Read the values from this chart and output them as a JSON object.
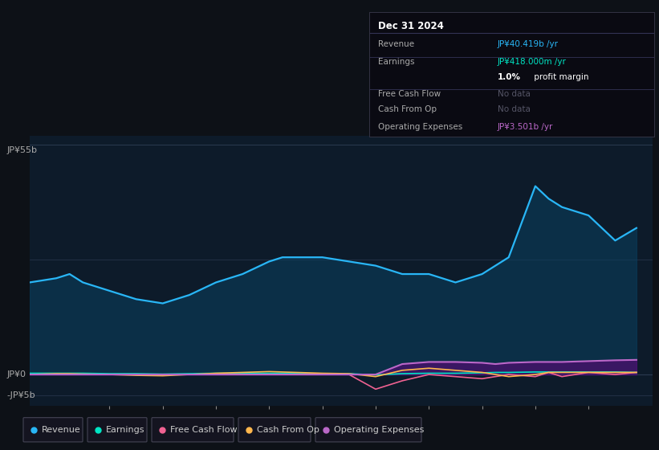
{
  "background_color": "#0d1117",
  "chart_bg_color": "#0d1b2a",
  "x_years": [
    2013.5,
    2014.0,
    2014.25,
    2014.5,
    2015.0,
    2015.5,
    2016.0,
    2016.5,
    2017.0,
    2017.5,
    2018.0,
    2018.25,
    2018.5,
    2019.0,
    2019.5,
    2020.0,
    2020.5,
    2021.0,
    2021.5,
    2022.0,
    2022.25,
    2022.5,
    2023.0,
    2023.25,
    2023.5,
    2024.0,
    2024.5,
    2024.9
  ],
  "revenue": [
    22,
    23,
    24,
    22,
    20,
    18,
    17,
    19,
    22,
    24,
    27,
    28,
    28,
    28,
    27,
    26,
    24,
    24,
    22,
    24,
    26,
    28,
    45,
    42,
    40,
    38,
    32,
    35
  ],
  "earnings": [
    0.3,
    0.3,
    0.3,
    0.3,
    0.2,
    0.2,
    0.1,
    0.2,
    0.3,
    0.3,
    0.3,
    0.3,
    0.3,
    0.2,
    0.2,
    -0.1,
    0.2,
    0.3,
    0.3,
    0.4,
    0.5,
    0.5,
    0.6,
    0.6,
    0.6,
    0.6,
    0.6,
    0.5
  ],
  "free_cash_flow": [
    0.0,
    0.0,
    0.0,
    0.0,
    0.0,
    0.0,
    0.0,
    0.0,
    0.0,
    0.0,
    0.0,
    0.0,
    0.0,
    0.2,
    0.0,
    -3.5,
    -1.5,
    0.0,
    -0.5,
    -1.0,
    -0.5,
    0.0,
    -0.5,
    0.5,
    -0.5,
    0.5,
    0.0,
    0.5
  ],
  "cash_from_op": [
    0.0,
    0.2,
    0.2,
    0.1,
    0.0,
    -0.2,
    -0.3,
    0.0,
    0.3,
    0.5,
    0.7,
    0.6,
    0.5,
    0.3,
    0.2,
    -0.5,
    1.0,
    1.5,
    1.0,
    0.5,
    0.0,
    -0.5,
    0.0,
    0.5,
    0.5,
    0.5,
    0.5,
    0.5
  ],
  "operating_expenses": [
    0.0,
    0.0,
    0.0,
    0.0,
    0.0,
    0.0,
    0.0,
    0.0,
    0.0,
    0.0,
    0.0,
    0.0,
    0.0,
    0.0,
    0.0,
    0.0,
    2.5,
    3.0,
    3.0,
    2.8,
    2.5,
    2.8,
    3.0,
    3.0,
    3.0,
    3.2,
    3.4,
    3.5
  ],
  "revenue_color": "#29b6f6",
  "earnings_color": "#00e5c4",
  "free_cash_flow_color": "#f06292",
  "cash_from_op_color": "#ffb74d",
  "operating_expenses_color": "#ba68c8",
  "revenue_fill_alpha": 0.55,
  "xlim": [
    2013.5,
    2025.2
  ],
  "ylim": [
    -7.5,
    57
  ],
  "x_ticks": [
    2015,
    2016,
    2017,
    2018,
    2019,
    2020,
    2021,
    2022,
    2023,
    2024
  ],
  "legend_items": [
    {
      "label": "Revenue",
      "color": "#29b6f6"
    },
    {
      "label": "Earnings",
      "color": "#00e5c4"
    },
    {
      "label": "Free Cash Flow",
      "color": "#f06292"
    },
    {
      "label": "Cash From Op",
      "color": "#ffb74d"
    },
    {
      "label": "Operating Expenses",
      "color": "#ba68c8"
    }
  ]
}
